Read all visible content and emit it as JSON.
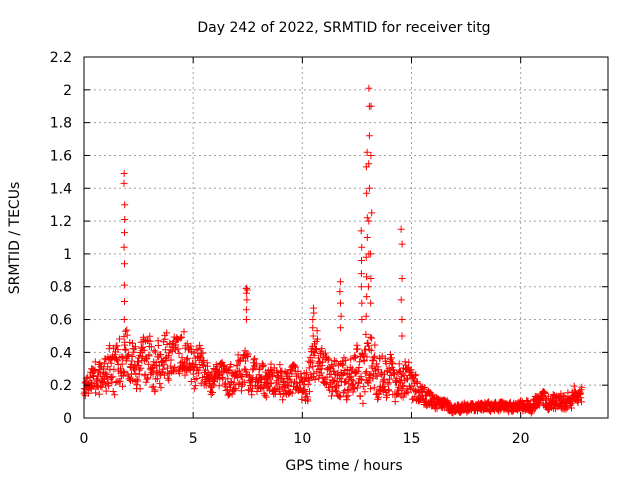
{
  "chart_data": {
    "type": "scatter",
    "title": "Day 242 of 2022, SRMTID for receiver titg",
    "xlabel": "GPS time / hours",
    "ylabel": "SRMTID / TECUs",
    "xlim": [
      0,
      24
    ],
    "ylim": [
      0,
      2.2
    ],
    "x_ticks": [
      0,
      5,
      10,
      15,
      20
    ],
    "x_tick_labels": [
      "0",
      "5",
      "10",
      "15",
      "20"
    ],
    "y_ticks": [
      0,
      0.2,
      0.4,
      0.6,
      0.8,
      1,
      1.2,
      1.4,
      1.6,
      1.8,
      2,
      2.2
    ],
    "y_tick_labels": [
      "0",
      "0.2",
      "0.4",
      "0.6",
      "0.8",
      "1",
      "1.2",
      "1.4",
      "1.6",
      "1.8",
      "2",
      "2.2"
    ],
    "grid": true,
    "marker": "+",
    "marker_color": "#ff0000",
    "x_data_range": [
      0,
      22.8
    ],
    "envelope": {
      "x": [
        0,
        0.3,
        0.6,
        1.0,
        1.4,
        1.8,
        2.2,
        2.6,
        3.0,
        3.5,
        4.0,
        4.3,
        4.6,
        5.0,
        5.4,
        5.7,
        6.0,
        6.5,
        7.0,
        7.4,
        7.7,
        8.0,
        8.5,
        9.0,
        9.5,
        10.0,
        10.4,
        10.7,
        11.0,
        11.4,
        11.8,
        12.2,
        12.6,
        13.0,
        13.4,
        13.8,
        14.2,
        14.6,
        15.0,
        15.4,
        15.8,
        16.2,
        16.6,
        17.0,
        17.5,
        18.0,
        18.5,
        19.0,
        19.5,
        20.0,
        20.5,
        21.0,
        21.5,
        22.0,
        22.4,
        22.8
      ],
      "center": [
        0.16,
        0.22,
        0.26,
        0.26,
        0.33,
        0.36,
        0.33,
        0.31,
        0.34,
        0.32,
        0.38,
        0.4,
        0.37,
        0.33,
        0.3,
        0.25,
        0.24,
        0.24,
        0.25,
        0.3,
        0.26,
        0.23,
        0.24,
        0.22,
        0.23,
        0.2,
        0.26,
        0.38,
        0.3,
        0.21,
        0.25,
        0.26,
        0.3,
        0.33,
        0.3,
        0.24,
        0.23,
        0.23,
        0.22,
        0.14,
        0.11,
        0.1,
        0.07,
        0.06,
        0.06,
        0.07,
        0.07,
        0.07,
        0.07,
        0.07,
        0.08,
        0.11,
        0.1,
        0.1,
        0.13,
        0.15
      ],
      "spread": [
        0.05,
        0.08,
        0.12,
        0.12,
        0.16,
        0.17,
        0.15,
        0.15,
        0.16,
        0.16,
        0.14,
        0.14,
        0.14,
        0.13,
        0.12,
        0.09,
        0.09,
        0.1,
        0.1,
        0.16,
        0.11,
        0.1,
        0.1,
        0.1,
        0.1,
        0.1,
        0.14,
        0.18,
        0.14,
        0.11,
        0.15,
        0.16,
        0.18,
        0.2,
        0.18,
        0.14,
        0.12,
        0.12,
        0.12,
        0.08,
        0.05,
        0.04,
        0.03,
        0.03,
        0.03,
        0.03,
        0.03,
        0.03,
        0.03,
        0.03,
        0.04,
        0.05,
        0.05,
        0.05,
        0.06,
        0.06
      ]
    },
    "spikes": [
      {
        "x": 1.85,
        "y": [
          0.6,
          0.71,
          0.81,
          0.94,
          1.04,
          1.13,
          1.21,
          1.3,
          1.43,
          1.49
        ]
      },
      {
        "x": 7.45,
        "y": [
          0.6,
          0.66,
          0.72,
          0.76,
          0.78,
          0.79,
          0.79
        ]
      },
      {
        "x": 10.5,
        "y": [
          0.5,
          0.55,
          0.6,
          0.64,
          0.67
        ]
      },
      {
        "x": 11.75,
        "y": [
          0.55,
          0.62,
          0.7,
          0.77,
          0.83
        ]
      },
      {
        "x": 12.7,
        "y": [
          0.6,
          0.7,
          0.8,
          0.88,
          0.96,
          1.04,
          1.14
        ]
      },
      {
        "x": 12.95,
        "y": [
          0.62,
          0.74,
          0.86,
          0.98,
          1.1,
          1.22,
          1.37,
          1.53,
          1.62
        ]
      },
      {
        "x": 13.05,
        "y": [
          0.8,
          1.0,
          1.2,
          1.4,
          1.55,
          1.72,
          1.9,
          2.01
        ]
      },
      {
        "x": 13.15,
        "y": [
          0.7,
          0.85,
          1.0,
          1.25,
          1.6,
          1.9
        ]
      },
      {
        "x": 14.55,
        "y": [
          0.5,
          0.6,
          0.72,
          0.85,
          1.06,
          1.15
        ]
      }
    ]
  }
}
